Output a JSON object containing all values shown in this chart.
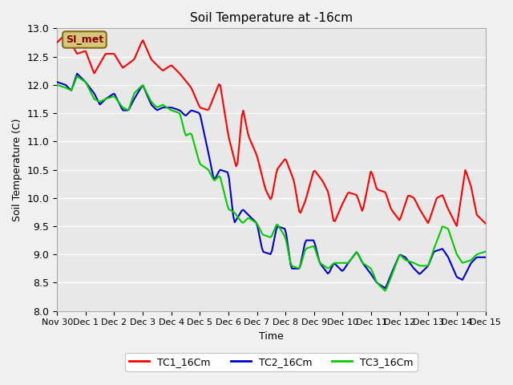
{
  "title": "Soil Temperature at -16cm",
  "xlabel": "Time",
  "ylabel": "Soil Temperature (C)",
  "ylim": [
    8.0,
    13.0
  ],
  "xlim": [
    0,
    15
  ],
  "bg_color": "#e8e8e8",
  "plot_bg_color": "#e8e8e8",
  "grid_color": "#ffffff",
  "annotation_text": "SI_met",
  "annotation_bg": "#d4c87a",
  "annotation_border": "#8b6914",
  "legend_labels": [
    "TC1_16Cm",
    "TC2_16Cm",
    "TC3_16Cm"
  ],
  "line_colors": [
    "#ff0000",
    "#0000cc",
    "#00cc00"
  ],
  "xtick_positions": [
    0,
    1,
    2,
    3,
    4,
    5,
    6,
    7,
    8,
    9,
    10,
    11,
    12,
    13,
    14,
    15
  ],
  "xtick_labels": [
    "Nov 30",
    "Dec 1",
    "Dec 2",
    "Dec 3",
    "Dec 4",
    "Dec 5",
    "Dec 6",
    "Dec 7",
    "Dec 8",
    "Dec 9",
    "Dec 10",
    "Dec 11",
    "Dec 12",
    "Dec 13",
    "Dec 14",
    "Dec 15"
  ],
  "ytick_labels": [
    "8.0",
    "8.5",
    "9.0",
    "9.5",
    "10.0",
    "10.5",
    "11.0",
    "11.5",
    "12.0",
    "12.5",
    "13.0"
  ]
}
